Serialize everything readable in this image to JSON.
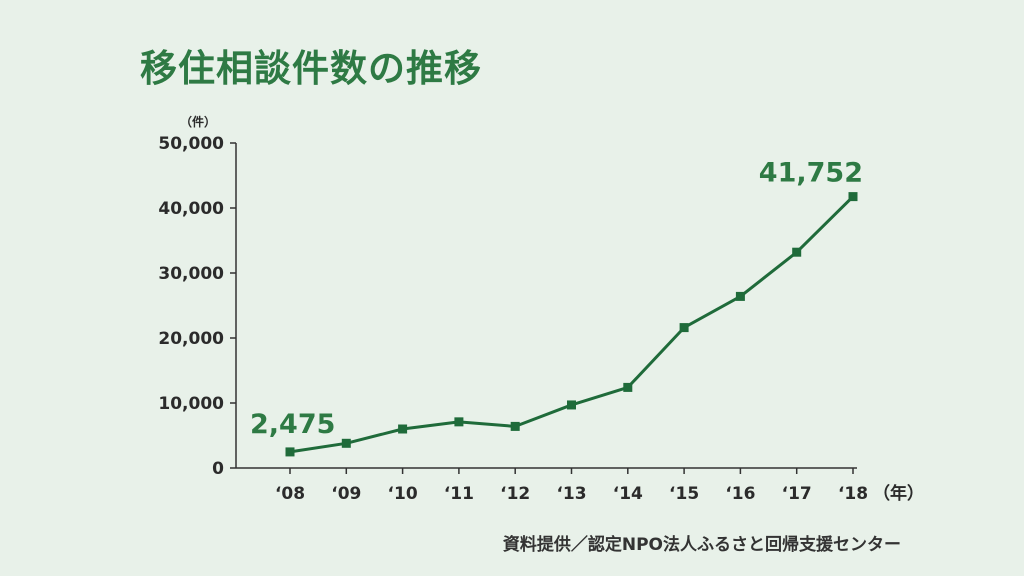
{
  "title": "移住相談件数の推移",
  "source": "資料提供／認定NPO法人ふるさと回帰支援センター",
  "colors": {
    "line": "#1f6b3a",
    "title": "#2e7a44",
    "axis": "#333333",
    "background": "#e8f1e9"
  },
  "chart_data": {
    "type": "line",
    "title": "移住相談件数の推移",
    "y_unit": "（件）",
    "x_unit": "（年）",
    "categories": [
      "‘08",
      "‘09",
      "‘10",
      "‘11",
      "‘12",
      "‘13",
      "‘14",
      "‘15",
      "‘16",
      "‘17",
      "‘18"
    ],
    "ylim": [
      0,
      50000
    ],
    "yticks": [
      0,
      10000,
      20000,
      30000,
      40000,
      50000
    ],
    "ytick_labels": [
      "0",
      "10,000",
      "20,000",
      "30,000",
      "40,000",
      "50,000"
    ],
    "series": [
      {
        "values": [
          2475,
          3800,
          6000,
          7100,
          6400,
          9700,
          12400,
          21600,
          26400,
          33200,
          41752
        ]
      }
    ],
    "annotations": [
      {
        "index": 0,
        "text": "2,475"
      },
      {
        "index": 10,
        "text": "41,752"
      }
    ],
    "grid": false,
    "legend": "none"
  }
}
